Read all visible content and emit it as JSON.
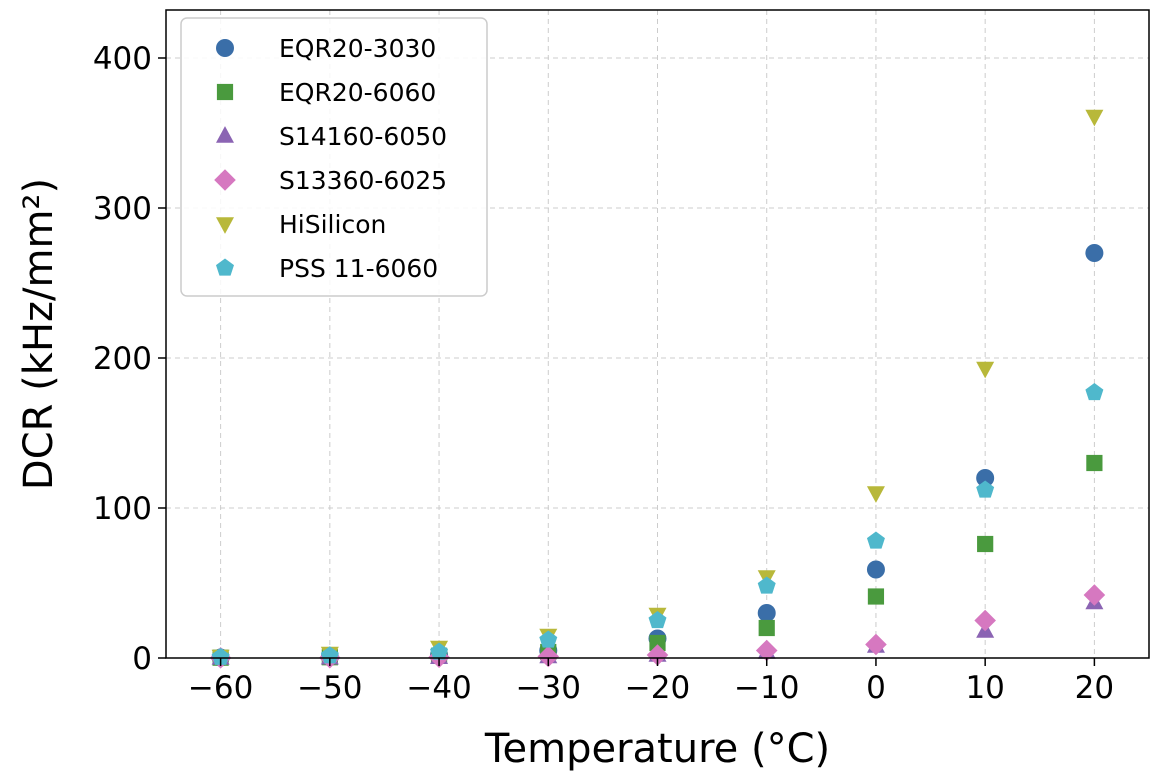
{
  "chart_data": {
    "type": "scatter",
    "title": "",
    "xlabel": "Temperature (°C)",
    "ylabel": "DCR (kHz/mm²)",
    "xlim": [
      -65,
      25
    ],
    "ylim": [
      0,
      432
    ],
    "xticks": [
      -60,
      -50,
      -40,
      -30,
      -20,
      -10,
      0,
      10,
      20
    ],
    "xtick_labels": [
      "−60",
      "−50",
      "−40",
      "−30",
      "−20",
      "−10",
      "0",
      "10",
      "20"
    ],
    "yticks": [
      0,
      100,
      200,
      300,
      400
    ],
    "ytick_labels": [
      "0",
      "100",
      "200",
      "300",
      "400"
    ],
    "grid": true,
    "legend_position": "top-left",
    "series": [
      {
        "name": "EQR20-3030",
        "marker": "circle",
        "color": "#3a6ea8",
        "x": [
          -60,
          -50,
          -40,
          -30,
          -20,
          -10,
          0,
          10,
          20
        ],
        "y": [
          0.3,
          0.7,
          2,
          5,
          13,
          30,
          59,
          120,
          270
        ]
      },
      {
        "name": "EQR20-6060",
        "marker": "square",
        "color": "#4a9a3e",
        "x": [
          -60,
          -50,
          -40,
          -30,
          -20,
          -10,
          0,
          10,
          20
        ],
        "y": [
          0.2,
          0.5,
          1.5,
          4,
          10,
          20,
          41,
          76,
          130
        ]
      },
      {
        "name": "S14160-6050",
        "marker": "triangle-up",
        "color": "#8b64b3",
        "x": [
          -60,
          -50,
          -40,
          -30,
          -20,
          -10,
          0,
          10,
          20
        ],
        "y": [
          0.1,
          0.2,
          0.5,
          1,
          2,
          4,
          8,
          18,
          37
        ]
      },
      {
        "name": "S13360-6025",
        "marker": "diamond",
        "color": "#d678c0",
        "x": [
          -60,
          -50,
          -40,
          -30,
          -20,
          -10,
          0,
          10,
          20
        ],
        "y": [
          0.1,
          0.2,
          0.5,
          1,
          2,
          5,
          9,
          25,
          42
        ]
      },
      {
        "name": "HiSilicon",
        "marker": "triangle-down",
        "color": "#b8b83a",
        "x": [
          -60,
          -50,
          -40,
          -30,
          -20,
          -10,
          0,
          10,
          20
        ],
        "y": [
          1,
          3,
          7,
          15,
          29,
          54,
          110,
          193,
          361
        ]
      },
      {
        "name": "PSS 11-6060",
        "marker": "pentagon",
        "color": "#4fb8cc",
        "x": [
          -60,
          -50,
          -40,
          -30,
          -20,
          -10,
          0,
          10,
          20
        ],
        "y": [
          0.5,
          1.5,
          4,
          12,
          25,
          48,
          78,
          112,
          177
        ]
      }
    ]
  }
}
